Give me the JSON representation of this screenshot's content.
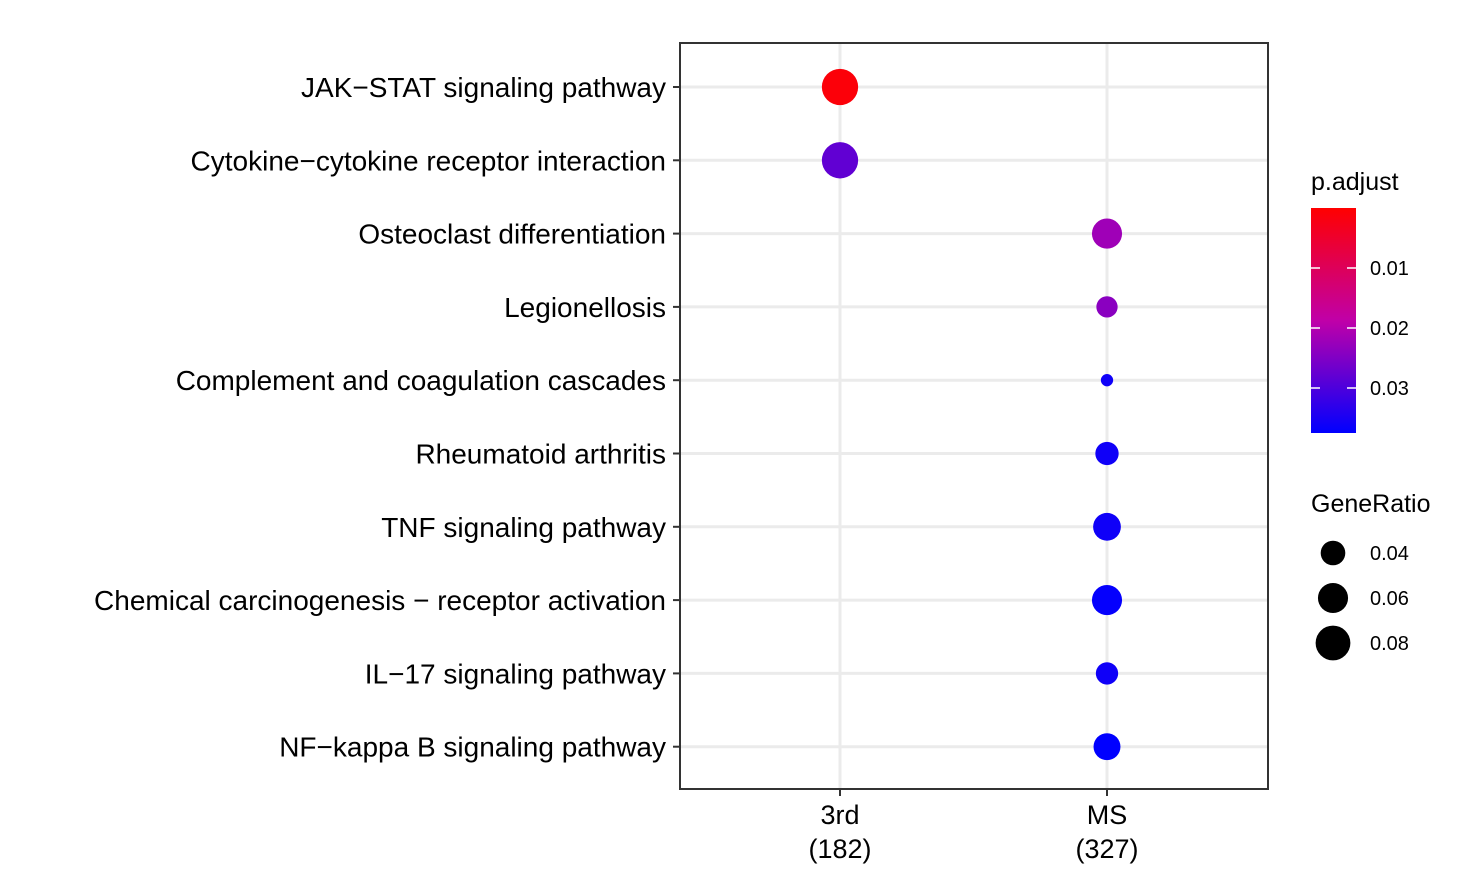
{
  "chart_data": {
    "type": "scatter",
    "title": "",
    "xlabel": "",
    "ylabel": "",
    "categories_x": [
      {
        "line1": "3rd",
        "line2": "(182)"
      },
      {
        "line1": "MS",
        "line2": "(327)"
      }
    ],
    "categories_y": [
      "JAK−STAT signaling pathway",
      "Cytokine−cytokine receptor interaction",
      "Osteoclast differentiation",
      "Legionellosis",
      "Complement and coagulation cascades",
      "Rheumatoid arthritis",
      "TNF signaling pathway",
      "Chemical carcinogenesis − receptor activation",
      "IL−17 signaling pathway",
      "NF−kappa B signaling pathway"
    ],
    "points": [
      {
        "x": "3rd",
        "y": "JAK−STAT signaling pathway",
        "gene_ratio": 0.087,
        "p_adjust": 0.001
      },
      {
        "x": "3rd",
        "y": "Cytokine−cytokine receptor interaction",
        "gene_ratio": 0.087,
        "p_adjust": 0.028
      },
      {
        "x": "MS",
        "y": "Osteoclast differentiation",
        "gene_ratio": 0.06,
        "p_adjust": 0.022
      },
      {
        "x": "MS",
        "y": "Legionellosis",
        "gene_ratio": 0.03,
        "p_adjust": 0.024
      },
      {
        "x": "MS",
        "y": "Complement and coagulation cascades",
        "gene_ratio": 0.01,
        "p_adjust": 0.036
      },
      {
        "x": "MS",
        "y": "Rheumatoid arthritis",
        "gene_ratio": 0.036,
        "p_adjust": 0.036
      },
      {
        "x": "MS",
        "y": "TNF signaling pathway",
        "gene_ratio": 0.051,
        "p_adjust": 0.036
      },
      {
        "x": "MS",
        "y": "Chemical carcinogenesis − receptor activation",
        "gene_ratio": 0.06,
        "p_adjust": 0.037
      },
      {
        "x": "MS",
        "y": "IL−17 signaling pathway",
        "gene_ratio": 0.033,
        "p_adjust": 0.036
      },
      {
        "x": "MS",
        "y": "NF−kappa B signaling pathway",
        "gene_ratio": 0.048,
        "p_adjust": 0.038
      }
    ],
    "color_legend": {
      "title": "p.adjust",
      "min": 0.0,
      "max": 0.0375,
      "ticks": [
        {
          "value": 0.01,
          "label": "0.01"
        },
        {
          "value": 0.02,
          "label": "0.02"
        },
        {
          "value": 0.03,
          "label": "0.03"
        }
      ],
      "low_color": "#ff0000",
      "high_color": "#0000ff"
    },
    "size_legend": {
      "title": "GeneRatio",
      "entries": [
        {
          "value": 0.04,
          "label": "0.04"
        },
        {
          "value": 0.06,
          "label": "0.06"
        },
        {
          "value": 0.08,
          "label": "0.08"
        }
      ]
    },
    "grid": true,
    "legend_position": "right"
  }
}
